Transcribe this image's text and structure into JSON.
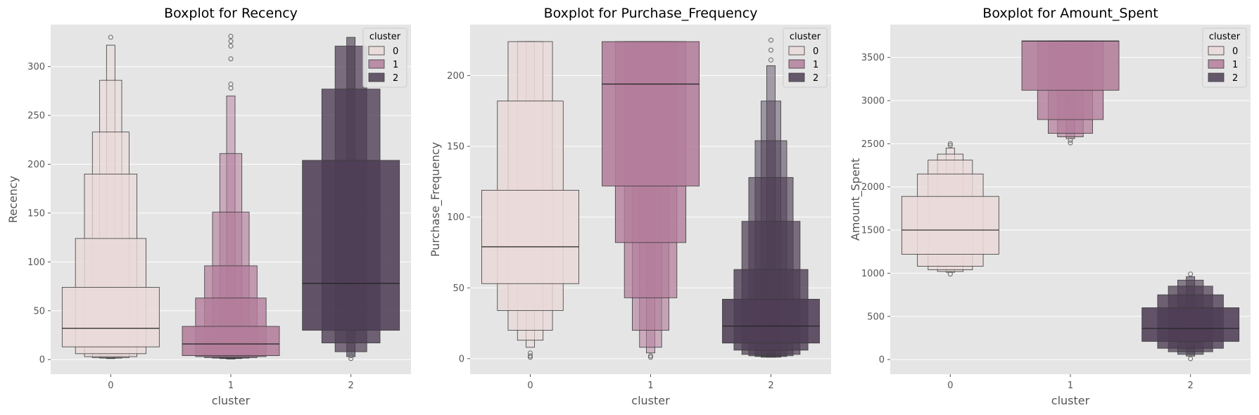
{
  "palette": [
    "#e9d9d8",
    "#b37d9b",
    "#4f3e55"
  ],
  "chart_data": [
    {
      "type": "boxen",
      "title": "Boxplot for Recency",
      "xlabel": "cluster",
      "ylabel": "Recency",
      "categories": [
        "0",
        "1",
        "2"
      ],
      "ylim": [
        -15,
        343
      ],
      "yticks": [
        0,
        50,
        100,
        150,
        200,
        250,
        300
      ],
      "grid": true,
      "legend": {
        "title": "cluster",
        "entries": [
          "0",
          "1",
          "2"
        ],
        "placement": "top-right"
      },
      "series": [
        {
          "levels": [
            [
              13,
              74
            ],
            [
              6,
              124
            ],
            [
              3,
              190
            ],
            [
              2,
              233
            ],
            [
              1.5,
              286
            ],
            [
              1,
              322
            ]
          ],
          "median": 32,
          "outliers": [
            330
          ]
        },
        {
          "levels": [
            [
              4,
              34
            ],
            [
              3,
              63
            ],
            [
              2,
              96
            ],
            [
              1.5,
              151
            ],
            [
              1,
              211
            ],
            [
              0.5,
              270
            ]
          ],
          "median": 16,
          "outliers": [
            278,
            282,
            308,
            321,
            326,
            331
          ]
        },
        {
          "levels": [
            [
              30,
              204
            ],
            [
              17,
              277
            ],
            [
              8,
              321
            ],
            [
              3,
              330
            ]
          ],
          "median": 78,
          "outliers": [
            1,
            4
          ]
        }
      ]
    },
    {
      "type": "boxen",
      "title": "Boxplot for Purchase_Frequency",
      "xlabel": "cluster",
      "ylabel": "Purchase_Frequency",
      "categories": [
        "0",
        "1",
        "2"
      ],
      "ylim": [
        -11,
        236
      ],
      "yticks": [
        0,
        50,
        100,
        150,
        200
      ],
      "grid": true,
      "legend": {
        "title": "cluster",
        "entries": [
          "0",
          "1",
          "2"
        ],
        "placement": "top-right"
      },
      "series": [
        {
          "levels": [
            [
              53,
              119
            ],
            [
              34,
              182
            ],
            [
              20,
              224
            ],
            [
              13,
              224
            ],
            [
              8,
              224
            ]
          ],
          "median": 79,
          "outliers": [
            1,
            2,
            4
          ]
        },
        {
          "levels": [
            [
              122,
              224
            ],
            [
              82,
              224
            ],
            [
              43,
              224
            ],
            [
              20,
              224
            ],
            [
              8,
              224
            ],
            [
              4,
              224
            ]
          ],
          "median": 194,
          "outliers": [
            1,
            2
          ]
        },
        {
          "levels": [
            [
              11,
              42
            ],
            [
              6,
              63
            ],
            [
              3,
              97
            ],
            [
              2,
              128
            ],
            [
              1.5,
              154
            ],
            [
              1,
              182
            ],
            [
              1,
              207
            ]
          ],
          "median": 23,
          "outliers": [
            211,
            218,
            225
          ]
        }
      ]
    },
    {
      "type": "boxen",
      "title": "Boxplot for Amount_Spent",
      "xlabel": "cluster",
      "ylabel": "Amount_Spent",
      "categories": [
        "0",
        "1",
        "2"
      ],
      "ylim": [
        -170,
        3880
      ],
      "yticks": [
        0,
        500,
        1000,
        1500,
        2000,
        2500,
        3000,
        3500
      ],
      "grid": true,
      "legend": {
        "title": "cluster",
        "entries": [
          "0",
          "1",
          "2"
        ],
        "placement": "top-right"
      },
      "series": [
        {
          "levels": [
            [
              1220,
              1890
            ],
            [
              1080,
              2150
            ],
            [
              1040,
              2310
            ],
            [
              1020,
              2380
            ],
            [
              1010,
              2450
            ]
          ],
          "median": 1500,
          "outliers": [
            990,
            2480,
            2500
          ]
        },
        {
          "levels": [
            [
              3120,
              3690
            ],
            [
              2780,
              3690
            ],
            [
              2620,
              3690
            ],
            [
              2580,
              3690
            ],
            [
              2560,
              3690
            ]
          ],
          "median": 3690,
          "outliers": [
            2510,
            2540
          ]
        },
        {
          "levels": [
            [
              210,
              600
            ],
            [
              130,
              750
            ],
            [
              90,
              850
            ],
            [
              60,
              920
            ],
            [
              40,
              960
            ]
          ],
          "median": 360,
          "outliers": [
            10,
            990
          ]
        }
      ]
    }
  ]
}
